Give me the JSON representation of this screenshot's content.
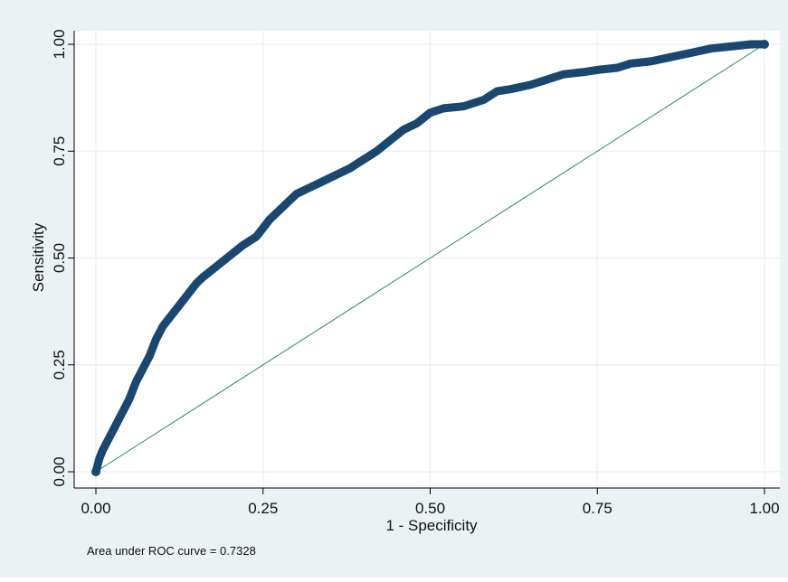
{
  "chart_data": {
    "type": "line",
    "title": "",
    "xlabel": "1 - Specificity",
    "ylabel": "Sensitivity",
    "xlim": [
      0,
      1
    ],
    "ylim": [
      0,
      1
    ],
    "xticks": [
      "0.00",
      "0.25",
      "0.50",
      "0.75",
      "1.00"
    ],
    "yticks": [
      "0.00",
      "0.25",
      "0.50",
      "0.75",
      "1.00"
    ],
    "grid": true,
    "note": "Area under ROC curve = 0.7328",
    "series": [
      {
        "values": [
          [
            0.0,
            0.0
          ],
          [
            0.005,
            0.03
          ],
          [
            0.01,
            0.05
          ],
          [
            0.02,
            0.08
          ],
          [
            0.03,
            0.11
          ],
          [
            0.04,
            0.14
          ],
          [
            0.05,
            0.17
          ],
          [
            0.06,
            0.21
          ],
          [
            0.07,
            0.24
          ],
          [
            0.08,
            0.27
          ],
          [
            0.09,
            0.31
          ],
          [
            0.1,
            0.34
          ],
          [
            0.11,
            0.36
          ],
          [
            0.12,
            0.38
          ],
          [
            0.13,
            0.4
          ],
          [
            0.14,
            0.42
          ],
          [
            0.15,
            0.44
          ],
          [
            0.16,
            0.455
          ],
          [
            0.18,
            0.48
          ],
          [
            0.2,
            0.505
          ],
          [
            0.22,
            0.53
          ],
          [
            0.24,
            0.55
          ],
          [
            0.26,
            0.59
          ],
          [
            0.28,
            0.62
          ],
          [
            0.3,
            0.65
          ],
          [
            0.32,
            0.665
          ],
          [
            0.34,
            0.68
          ],
          [
            0.36,
            0.695
          ],
          [
            0.38,
            0.71
          ],
          [
            0.4,
            0.73
          ],
          [
            0.42,
            0.75
          ],
          [
            0.44,
            0.775
          ],
          [
            0.46,
            0.8
          ],
          [
            0.48,
            0.815
          ],
          [
            0.5,
            0.84
          ],
          [
            0.52,
            0.85
          ],
          [
            0.55,
            0.855
          ],
          [
            0.58,
            0.87
          ],
          [
            0.6,
            0.89
          ],
          [
            0.62,
            0.895
          ],
          [
            0.65,
            0.905
          ],
          [
            0.68,
            0.92
          ],
          [
            0.7,
            0.93
          ],
          [
            0.73,
            0.935
          ],
          [
            0.75,
            0.94
          ],
          [
            0.78,
            0.945
          ],
          [
            0.8,
            0.955
          ],
          [
            0.83,
            0.96
          ],
          [
            0.86,
            0.97
          ],
          [
            0.89,
            0.98
          ],
          [
            0.92,
            0.99
          ],
          [
            0.95,
            0.995
          ],
          [
            0.98,
            1.0
          ],
          [
            1.0,
            1.0
          ]
        ]
      }
    ],
    "reference_line": [
      [
        0,
        0
      ],
      [
        1,
        1
      ]
    ],
    "colors": {
      "outer_background": "#eaf2f3",
      "plot_background": "#ffffff",
      "grid": "#e8eff1",
      "curve": "#1a476f",
      "reference": "#2e8b57",
      "axis": "#000000"
    }
  }
}
